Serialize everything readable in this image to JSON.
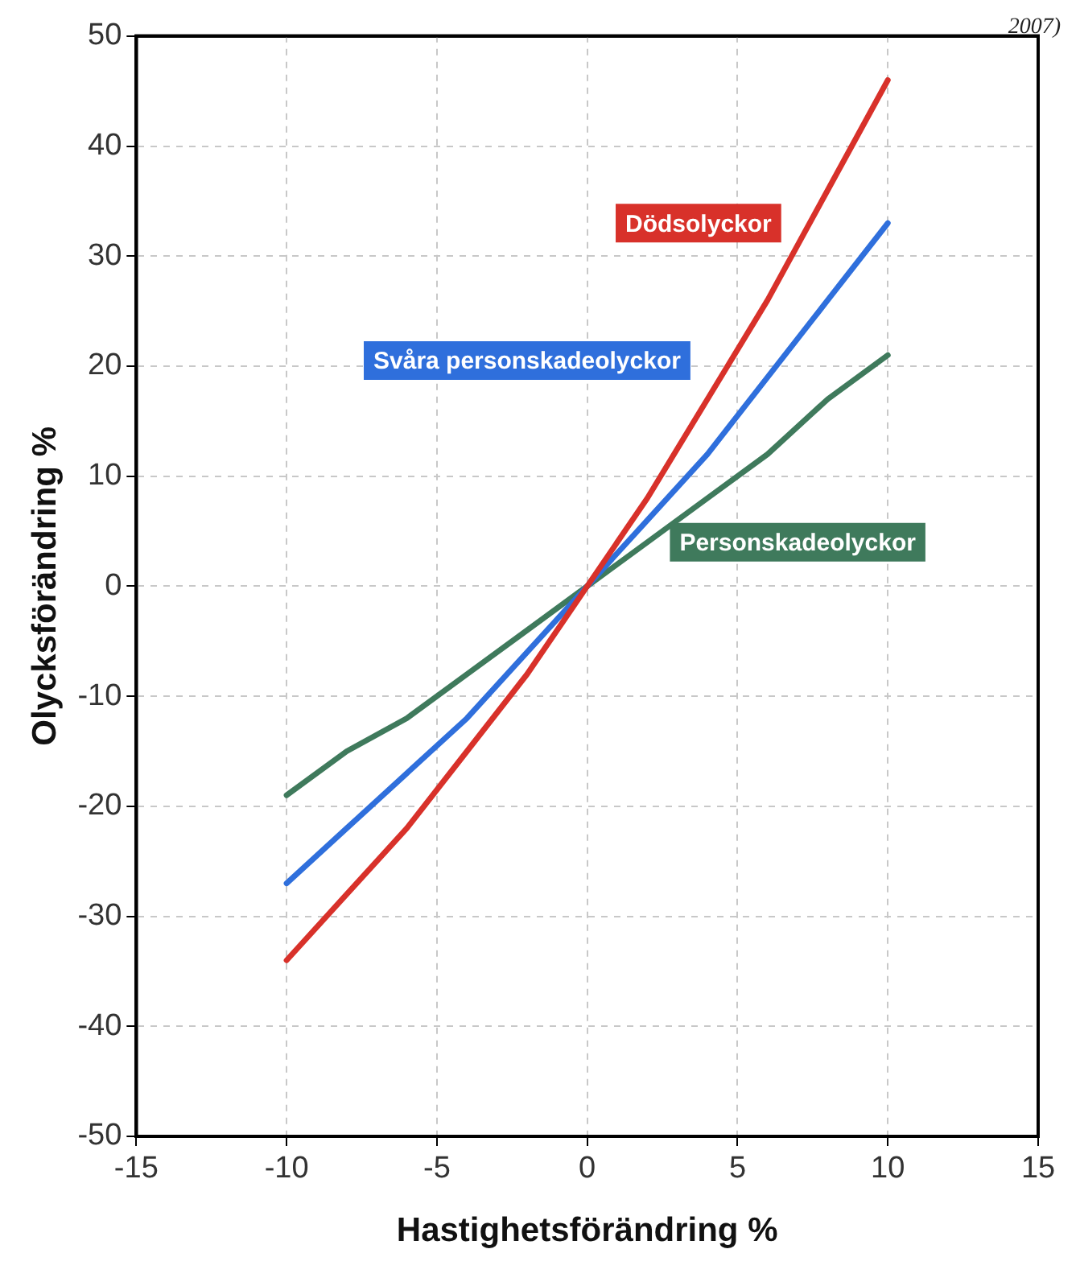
{
  "chart_data": {
    "type": "line",
    "xlabel": "Hastighetsförändring %",
    "ylabel": "Olycksförändring %",
    "annotations": [
      "2007)"
    ],
    "xlim": [
      -15,
      15
    ],
    "xticks": [
      -15,
      -10,
      -5,
      0,
      5,
      10,
      15
    ],
    "ylim": [
      -50,
      50
    ],
    "yticks": [
      -50,
      -40,
      -30,
      -20,
      -10,
      0,
      10,
      20,
      30,
      40,
      50
    ],
    "grid": true,
    "legend": false,
    "marker": "none",
    "line_style": "solid",
    "series": [
      {
        "name": "Dödsolyckor",
        "color": "#d8312a",
        "x": [
          -10,
          -8,
          -6,
          -4,
          -2,
          0,
          2,
          4,
          6,
          8,
          10
        ],
        "values": [
          -34,
          -28,
          -22,
          -15,
          -8,
          0,
          8,
          17,
          26,
          36,
          46
        ]
      },
      {
        "name": "Svåra personskadeolyckor",
        "color": "#2f6fdc",
        "x": [
          -10,
          -8,
          -6,
          -4,
          -2,
          0,
          2,
          4,
          6,
          8,
          10
        ],
        "values": [
          -27,
          -22,
          -17,
          -12,
          -6,
          0,
          6,
          12,
          19,
          26,
          33
        ]
      },
      {
        "name": "Personskadeolyckor",
        "color": "#3f7a5c",
        "x": [
          -10,
          -8,
          -6,
          -4,
          -2,
          0,
          2,
          4,
          6,
          8,
          10
        ],
        "values": [
          -19,
          -15,
          -12,
          -8,
          -4,
          0,
          4,
          8,
          12,
          17,
          21
        ]
      }
    ]
  }
}
